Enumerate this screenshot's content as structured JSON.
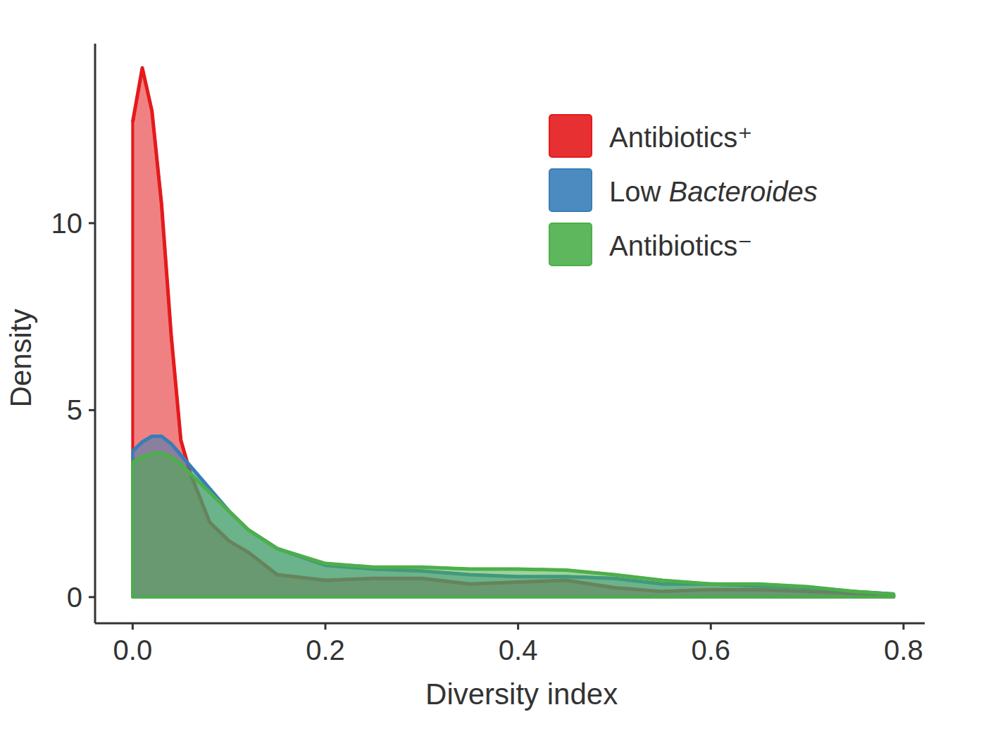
{
  "chart_data": {
    "type": "density",
    "x_label": "Diversity index",
    "y_label": "Density",
    "x": [
      0,
      0.01,
      0.02,
      0.03,
      0.04,
      0.05,
      0.06,
      0.08,
      0.1,
      0.12,
      0.15,
      0.2,
      0.25,
      0.3,
      0.35,
      0.4,
      0.45,
      0.5,
      0.55,
      0.6,
      0.65,
      0.7,
      0.75,
      0.79
    ],
    "series": [
      {
        "name": "Antibiotics⁺",
        "color": "#e41a1c",
        "values": [
          12.7,
          14.15,
          13.0,
          10.5,
          7.0,
          4.2,
          3.3,
          2.0,
          1.5,
          1.2,
          0.6,
          0.45,
          0.5,
          0.5,
          0.35,
          0.4,
          0.45,
          0.25,
          0.15,
          0.2,
          0.2,
          0.15,
          0.1,
          0.05
        ]
      },
      {
        "name": "Low Bacteroides",
        "color": "#377eb8",
        "values": [
          3.9,
          4.15,
          4.3,
          4.3,
          4.1,
          3.8,
          3.5,
          2.9,
          2.3,
          1.8,
          1.3,
          0.85,
          0.75,
          0.7,
          0.6,
          0.55,
          0.55,
          0.5,
          0.35,
          0.35,
          0.3,
          0.25,
          0.15,
          0.08
        ]
      },
      {
        "name": "Antibiotics⁻",
        "color": "#4daf4a",
        "values": [
          3.6,
          3.75,
          3.85,
          3.85,
          3.75,
          3.55,
          3.3,
          2.8,
          2.3,
          1.8,
          1.3,
          0.9,
          0.8,
          0.8,
          0.75,
          0.75,
          0.72,
          0.6,
          0.45,
          0.35,
          0.35,
          0.28,
          0.15,
          0.08
        ]
      }
    ],
    "xlim": [
      -0.039,
      0.822
    ],
    "ylim": [
      -0.7,
      14.8
    ],
    "xticks": [
      {
        "value": 0,
        "label": "0.0"
      },
      0.2,
      0.4,
      0.6,
      0.8
    ],
    "yticks": [
      0,
      5,
      10
    ],
    "legend": "top-right",
    "grid": false
  }
}
